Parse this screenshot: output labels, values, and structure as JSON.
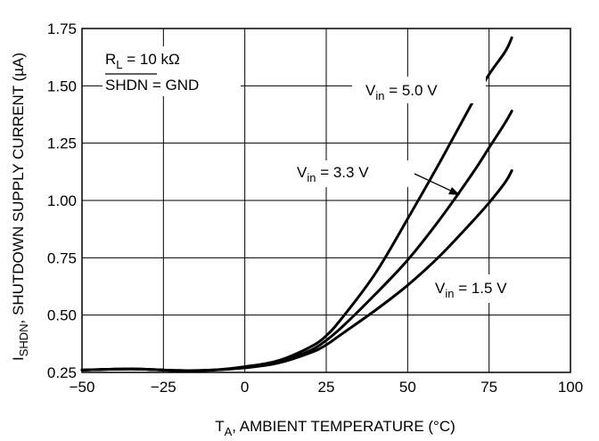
{
  "chart_data": {
    "type": "line",
    "xlim": [
      -50,
      100
    ],
    "ylim": [
      0.25,
      1.75
    ],
    "x_ticks": [
      "−50",
      "−25",
      "0",
      "25",
      "50",
      "75",
      "100"
    ],
    "y_ticks": [
      "0.25",
      "0.50",
      "0.75",
      "1.00",
      "1.25",
      "1.50",
      "1.75"
    ],
    "xlabel": {
      "main": "T",
      "sub": "A",
      "rest": ", AMBIENT TEMPERATURE (°C)"
    },
    "ylabel": {
      "main": "I",
      "sub": "SHDN",
      "rest": ", SHUTDOWN SUPPLY CURRENT (µA)"
    },
    "grid": true,
    "conditions": {
      "line1": {
        "main": "R",
        "sub": "L",
        "rest": " = 10 kΩ"
      },
      "line2": {
        "overbar": "SHDN",
        "rest": " = GND"
      }
    },
    "series": [
      {
        "name": "Vin = 5.0 V",
        "label": {
          "main": "V",
          "sub": "in",
          "rest": " = 5.0 V"
        },
        "x": [
          -50,
          -35,
          -20,
          -10,
          0,
          10,
          20,
          25,
          30,
          40,
          50,
          60,
          70,
          75,
          80,
          82
        ],
        "y": [
          0.26,
          0.265,
          0.258,
          0.26,
          0.275,
          0.3,
          0.36,
          0.41,
          0.49,
          0.68,
          0.92,
          1.17,
          1.43,
          1.55,
          1.65,
          1.71
        ]
      },
      {
        "name": "Vin = 3.3 V",
        "label": {
          "main": "V",
          "sub": "in",
          "rest": " = 3.3 V"
        },
        "x": [
          -50,
          -35,
          -20,
          -10,
          0,
          10,
          20,
          25,
          30,
          40,
          50,
          60,
          70,
          75,
          80,
          82
        ],
        "y": [
          0.26,
          0.265,
          0.258,
          0.26,
          0.272,
          0.295,
          0.345,
          0.39,
          0.45,
          0.59,
          0.74,
          0.92,
          1.12,
          1.23,
          1.34,
          1.39
        ]
      },
      {
        "name": "Vin = 1.5 V",
        "label": {
          "main": "V",
          "sub": "in",
          "rest": " = 1.5 V"
        },
        "x": [
          -50,
          -35,
          -20,
          -10,
          0,
          10,
          20,
          25,
          30,
          40,
          50,
          60,
          70,
          75,
          80,
          82
        ],
        "y": [
          0.26,
          0.265,
          0.258,
          0.26,
          0.27,
          0.29,
          0.335,
          0.37,
          0.42,
          0.52,
          0.63,
          0.76,
          0.91,
          0.99,
          1.08,
          1.13
        ]
      }
    ]
  }
}
